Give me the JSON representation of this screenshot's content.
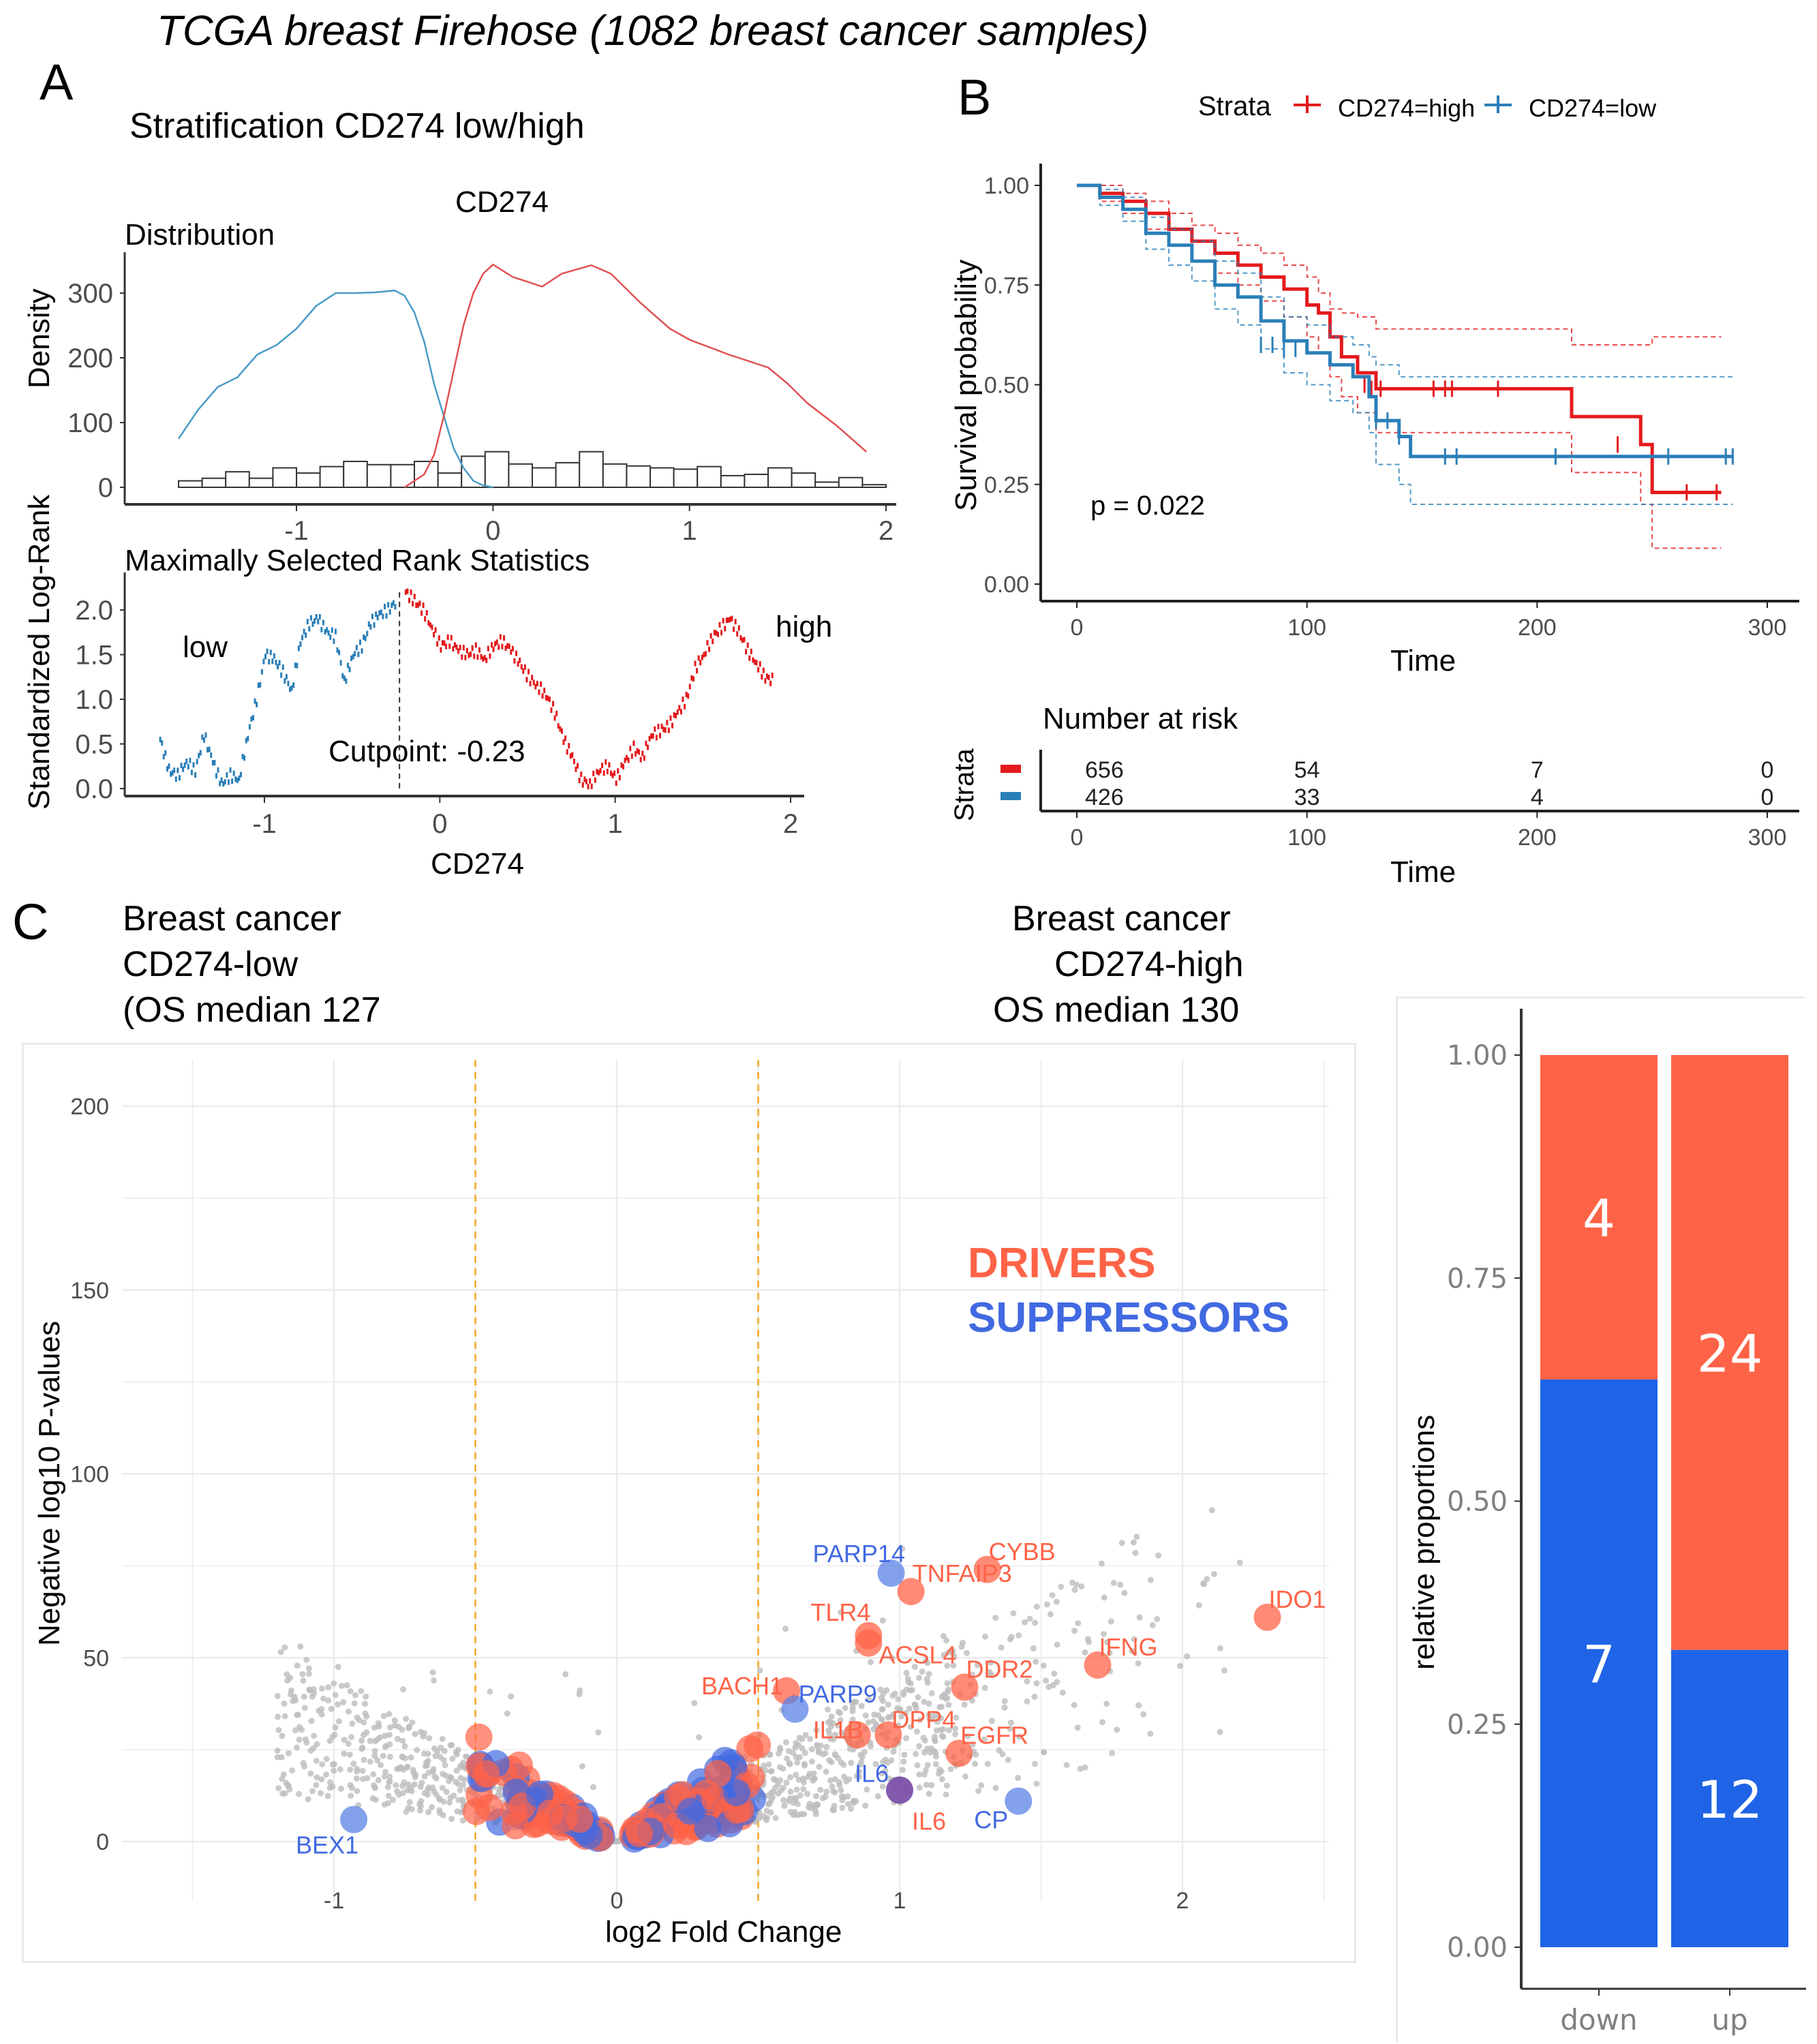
{
  "figure_title": "TCGA breast Firehose (1082 breast cancer samples)",
  "panels": {
    "A": {
      "letter": "A",
      "title": "Stratification CD274 low/high",
      "gene_label": "CD274",
      "distribution_title": "Distribution",
      "rank_title": "Maximally Selected Rank Statistics",
      "low_label": "low",
      "high_label": "high",
      "cutpoint_label": "Cutpoint: -0.23",
      "density_ylabel": "Density",
      "rank_ylabel": "Standardized Log-Rank",
      "xlabel": "CD274"
    },
    "B": {
      "letter": "B",
      "legend_title": "Strata",
      "legend_high": "CD274=high",
      "legend_low": "CD274=low",
      "ylabel": "Survival probability",
      "xlabel": "Time",
      "pvalue": "p = 0.022",
      "risk_title": "Number at risk",
      "risk_ylabel": "Strata",
      "risk_xlabel": "Time"
    },
    "C": {
      "letter": "C",
      "left_header": [
        "Breast cancer",
        "CD274-low",
        "(OS median 127"
      ],
      "right_header": [
        "Breast cancer",
        "CD274-high",
        "OS median 130"
      ],
      "legend_drivers": "DRIVERS",
      "legend_suppressors": "SUPPRESSORS",
      "ylabel": "Negative log10 P-values",
      "xlabel": "log2 Fold Change",
      "bar_ylabel": "relative proportions"
    }
  },
  "colors": {
    "high_red": "#e41a1c",
    "low_blue": "#2a7fb8",
    "driver": "#ff6347",
    "suppressor": "#4169e1",
    "bar_driver": "#ff6347",
    "bar_suppressor": "#1f64e6",
    "threshold": "#f5a623",
    "grey_points": "#bdbdbd"
  },
  "chart_data": [
    {
      "id": "density",
      "type": "area",
      "title": "Distribution",
      "xlabel": "CD274",
      "ylabel": "Density",
      "xlim": [
        -1.65,
        2.0
      ],
      "ylim": [
        0,
        350
      ],
      "x_ticks": [
        "-1",
        "0",
        "1",
        "2"
      ],
      "x_tick_values": [
        -1,
        0,
        1,
        2
      ],
      "y_ticks": [
        "0",
        "100",
        "200",
        "300"
      ],
      "y_tick_values": [
        0,
        100,
        200,
        300
      ],
      "series": [
        {
          "name": "low",
          "color": "#4a9cc8",
          "x": [
            -1.6,
            -1.5,
            -1.4,
            -1.3,
            -1.2,
            -1.1,
            -1.0,
            -0.9,
            -0.8,
            -0.7,
            -0.6,
            -0.5,
            -0.45,
            -0.4,
            -0.35,
            -0.3,
            -0.25,
            -0.2,
            -0.15,
            -0.1,
            -0.05,
            0.0
          ],
          "y": [
            75,
            120,
            155,
            170,
            205,
            220,
            245,
            280,
            300,
            300,
            301,
            304,
            296,
            270,
            225,
            160,
            110,
            60,
            30,
            10,
            3,
            0
          ]
        },
        {
          "name": "high",
          "color": "#e05252",
          "x": [
            -0.45,
            -0.35,
            -0.3,
            -0.25,
            -0.2,
            -0.15,
            -0.1,
            -0.05,
            0.0,
            0.1,
            0.25,
            0.35,
            0.5,
            0.6,
            0.75,
            0.9,
            1.0,
            1.2,
            1.4,
            1.5,
            1.6,
            1.75,
            1.9
          ],
          "y": [
            0,
            20,
            50,
            110,
            180,
            250,
            300,
            330,
            344,
            325,
            310,
            330,
            343,
            330,
            285,
            245,
            228,
            205,
            185,
            160,
            130,
            95,
            55
          ]
        }
      ],
      "histogram": {
        "bin_starts": [
          -1.6,
          -1.48,
          -1.36,
          -1.24,
          -1.12,
          -1.0,
          -0.88,
          -0.76,
          -0.64,
          -0.52,
          -0.4,
          -0.28,
          -0.16,
          -0.04,
          0.08,
          0.2,
          0.32,
          0.44,
          0.56,
          0.68,
          0.8,
          0.92,
          1.04,
          1.16,
          1.28,
          1.4,
          1.52,
          1.64,
          1.76,
          1.88
        ],
        "bin_width": 0.12,
        "counts": [
          10,
          14,
          24,
          14,
          30,
          22,
          32,
          40,
          35,
          35,
          40,
          22,
          48,
          55,
          36,
          30,
          38,
          55,
          36,
          33,
          30,
          28,
          32,
          18,
          20,
          30,
          22,
          8,
          15,
          4
        ]
      }
    },
    {
      "id": "maxstat",
      "type": "scatter",
      "title": "Maximally Selected Rank Statistics",
      "xlabel": "CD274",
      "ylabel": "Standardized Log-Rank",
      "xlim": [
        -1.75,
        2.05
      ],
      "ylim": [
        0,
        2.25
      ],
      "x_ticks": [
        "-1",
        "0",
        "1",
        "2"
      ],
      "x_tick_values": [
        -1,
        0,
        1,
        2
      ],
      "y_ticks": [
        "0.0",
        "0.5",
        "1.0",
        "1.5",
        "2.0"
      ],
      "y_tick_values": [
        0,
        0.5,
        1.0,
        1.5,
        2.0
      ],
      "cutpoint": -0.23,
      "series": [
        {
          "name": "low",
          "color": "#2a7fb8",
          "x": [
            -1.6,
            -1.55,
            -1.5,
            -1.45,
            -1.4,
            -1.35,
            -1.3,
            -1.25,
            -1.2,
            -1.15,
            -1.1,
            -1.05,
            -1.0,
            -0.95,
            -0.9,
            -0.85,
            -0.8,
            -0.75,
            -0.7,
            -0.65,
            -0.6,
            -0.55,
            -0.5,
            -0.45,
            -0.4,
            -0.35,
            -0.3,
            -0.25
          ],
          "y": [
            0.55,
            0.2,
            0.15,
            0.3,
            0.2,
            0.6,
            0.3,
            0.05,
            0.15,
            0.1,
            0.6,
            1.0,
            1.5,
            1.45,
            1.3,
            1.1,
            1.65,
            1.85,
            1.9,
            1.75,
            1.7,
            1.2,
            1.5,
            1.6,
            1.85,
            1.95,
            2.0,
            2.1
          ]
        },
        {
          "name": "high",
          "color": "#e41a1c",
          "x": [
            -0.2,
            -0.15,
            -0.1,
            -0.05,
            0.0,
            0.05,
            0.1,
            0.15,
            0.2,
            0.25,
            0.3,
            0.35,
            0.4,
            0.45,
            0.5,
            0.55,
            0.6,
            0.65,
            0.7,
            0.75,
            0.8,
            0.85,
            0.9,
            0.95,
            1.0,
            1.05,
            1.1,
            1.15,
            1.2,
            1.25,
            1.3,
            1.35,
            1.4,
            1.45,
            1.5,
            1.55,
            1.6,
            1.65,
            1.7,
            1.75,
            1.8,
            1.85,
            1.9
          ],
          "y": [
            2.2,
            2.1,
            2.0,
            1.8,
            1.6,
            1.65,
            1.55,
            1.5,
            1.55,
            1.45,
            1.6,
            1.65,
            1.55,
            1.4,
            1.25,
            1.15,
            1.05,
            0.85,
            0.55,
            0.35,
            0.1,
            0.05,
            0.2,
            0.25,
            0.1,
            0.3,
            0.45,
            0.35,
            0.6,
            0.65,
            0.7,
            0.85,
            1.0,
            1.35,
            1.5,
            1.7,
            1.8,
            1.9,
            1.75,
            1.55,
            1.4,
            1.25,
            1.2
          ]
        }
      ]
    },
    {
      "id": "kaplan-meier",
      "type": "line",
      "xlabel": "Time",
      "ylabel": "Survival probability",
      "xlim": [
        0,
        300
      ],
      "ylim": [
        0,
        1
      ],
      "x_ticks": [
        "0",
        "100",
        "200",
        "300"
      ],
      "x_tick_values": [
        0,
        100,
        200,
        300
      ],
      "y_ticks": [
        "0.00",
        "0.25",
        "0.50",
        "0.75",
        "1.00"
      ],
      "y_tick_values": [
        0,
        0.25,
        0.5,
        0.75,
        1.0
      ],
      "legend": {
        "title": "Strata",
        "entries": [
          "CD274=high",
          "CD274=low"
        ],
        "placement": "top"
      },
      "annotation": "p = 0.022",
      "series": [
        {
          "name": "CD274=high",
          "color": "#e41a1c",
          "time": [
            0,
            10,
            20,
            30,
            40,
            50,
            60,
            70,
            80,
            90,
            100,
            105,
            110,
            115,
            122,
            130,
            170,
            210,
            215,
            245,
            250,
            280
          ],
          "surv": [
            1.0,
            0.98,
            0.96,
            0.93,
            0.89,
            0.86,
            0.83,
            0.8,
            0.77,
            0.74,
            0.7,
            0.68,
            0.62,
            0.57,
            0.53,
            0.49,
            0.49,
            0.49,
            0.42,
            0.35,
            0.23,
            0.23
          ],
          "upper": [
            1.0,
            1.0,
            0.98,
            0.96,
            0.93,
            0.9,
            0.88,
            0.85,
            0.83,
            0.8,
            0.77,
            0.73,
            0.69,
            0.68,
            0.67,
            0.64,
            0.64,
            0.64,
            0.6,
            0.6,
            0.62,
            0.62
          ],
          "lower": [
            1.0,
            0.96,
            0.93,
            0.89,
            0.85,
            0.81,
            0.78,
            0.75,
            0.71,
            0.67,
            0.62,
            0.58,
            0.52,
            0.47,
            0.43,
            0.38,
            0.38,
            0.38,
            0.28,
            0.2,
            0.09,
            0.09
          ],
          "censor_times": [
            125,
            128,
            132,
            155,
            160,
            163,
            183,
            235,
            265,
            278
          ],
          "censor_surv": [
            0.5,
            0.49,
            0.49,
            0.49,
            0.49,
            0.49,
            0.49,
            0.35,
            0.23,
            0.23
          ]
        },
        {
          "name": "CD274=low",
          "color": "#2a7fb8",
          "time": [
            0,
            10,
            20,
            30,
            40,
            50,
            60,
            70,
            80,
            90,
            100,
            110,
            120,
            127,
            130,
            140,
            145,
            285
          ],
          "surv": [
            1.0,
            0.97,
            0.94,
            0.88,
            0.85,
            0.81,
            0.75,
            0.72,
            0.66,
            0.61,
            0.58,
            0.55,
            0.52,
            0.47,
            0.41,
            0.37,
            0.32,
            0.32
          ],
          "upper": [
            1.0,
            0.99,
            0.97,
            0.92,
            0.89,
            0.86,
            0.81,
            0.78,
            0.72,
            0.67,
            0.65,
            0.62,
            0.6,
            0.57,
            0.55,
            0.52,
            0.52,
            0.52
          ],
          "lower": [
            1.0,
            0.95,
            0.91,
            0.84,
            0.8,
            0.76,
            0.69,
            0.65,
            0.59,
            0.53,
            0.5,
            0.46,
            0.43,
            0.38,
            0.3,
            0.25,
            0.2,
            0.2
          ],
          "censor_times": [
            80,
            85,
            90,
            95,
            130,
            135,
            140,
            160,
            165,
            208,
            257,
            282,
            285
          ],
          "censor_surv": [
            0.6,
            0.6,
            0.59,
            0.59,
            0.41,
            0.41,
            0.37,
            0.32,
            0.32,
            0.32,
            0.32,
            0.32,
            0.32
          ]
        }
      ]
    },
    {
      "id": "risk-table",
      "type": "table",
      "title": "Number at risk",
      "xlabel": "Time",
      "ylabel": "Strata",
      "x_ticks": [
        "0",
        "100",
        "200",
        "300"
      ],
      "x_tick_values": [
        0,
        100,
        200,
        300
      ],
      "rows": [
        {
          "strata": "CD274=high",
          "color": "#e41a1c",
          "values": [
            "656",
            "54",
            "7",
            "0"
          ]
        },
        {
          "strata": "CD274=low",
          "color": "#2a7fb8",
          "values": [
            "426",
            "33",
            "4",
            "0"
          ]
        }
      ]
    },
    {
      "id": "volcano",
      "type": "scatter",
      "xlabel": "log2 Fold Change",
      "ylabel": "Negative log10 P-values",
      "xlim": [
        -1.6,
        2.5
      ],
      "ylim": [
        -10,
        215
      ],
      "x_ticks": [
        "-1",
        "0",
        "1",
        "2"
      ],
      "x_tick_values": [
        -1,
        0,
        1,
        2
      ],
      "y_ticks": [
        "0",
        "50",
        "100",
        "150",
        "200"
      ],
      "y_tick_values": [
        0,
        50,
        100,
        150,
        200
      ],
      "thresholds_x": [
        -0.5,
        0.5
      ],
      "grid": true,
      "legend": {
        "entries": [
          "DRIVERS",
          "SUPPRESSORS"
        ],
        "placement": "top-right"
      },
      "labeled_genes": [
        {
          "gene": "PARP14",
          "x": 0.97,
          "y": 73,
          "class": "suppressor"
        },
        {
          "gene": "CYBB",
          "x": 1.31,
          "y": 74,
          "class": "driver"
        },
        {
          "gene": "TNFAIP3",
          "x": 1.04,
          "y": 68,
          "class": "driver"
        },
        {
          "gene": "TLR4",
          "x": 0.89,
          "y": 56,
          "class": "driver"
        },
        {
          "gene": "ACSL4",
          "x": 0.89,
          "y": 54,
          "class": "driver"
        },
        {
          "gene": "IDO1",
          "x": 2.3,
          "y": 61,
          "class": "driver"
        },
        {
          "gene": "IFNG",
          "x": 1.7,
          "y": 48,
          "class": "driver"
        },
        {
          "gene": "BACH1",
          "x": 0.6,
          "y": 41,
          "class": "driver"
        },
        {
          "gene": "DDR2",
          "x": 1.23,
          "y": 42,
          "class": "driver"
        },
        {
          "gene": "PARP9",
          "x": 0.63,
          "y": 36,
          "class": "suppressor"
        },
        {
          "gene": "IL1B",
          "x": 0.85,
          "y": 29,
          "class": "driver"
        },
        {
          "gene": "DPP4",
          "x": 0.96,
          "y": 29,
          "class": "driver"
        },
        {
          "gene": "EGFR",
          "x": 1.21,
          "y": 24,
          "class": "driver"
        },
        {
          "gene": "IL6",
          "x": 1.0,
          "y": 14,
          "class": "mixed",
          "label_class": "suppressor"
        },
        {
          "gene": "IL6",
          "x": 1.0,
          "y": 14,
          "class": "mixed",
          "label_class": "driver",
          "label_offset": "below"
        },
        {
          "gene": "CP",
          "x": 1.42,
          "y": 11,
          "class": "suppressor"
        },
        {
          "gene": "BEX1",
          "x": -0.93,
          "y": 6,
          "class": "suppressor"
        }
      ]
    },
    {
      "id": "proportions",
      "type": "bar",
      "stacked": true,
      "ylabel": "relative proportions",
      "categories": [
        "down",
        "up"
      ],
      "ylim": [
        0,
        1
      ],
      "y_ticks": [
        "0.00",
        "0.25",
        "0.50",
        "0.75",
        "1.00"
      ],
      "y_tick_values": [
        0,
        0.25,
        0.5,
        0.75,
        1.0
      ],
      "series": [
        {
          "name": "SUPPRESSORS",
          "color": "#1f64e6",
          "values": [
            7,
            12
          ]
        },
        {
          "name": "DRIVERS",
          "color": "#ff6347",
          "values": [
            4,
            24
          ]
        }
      ]
    }
  ]
}
